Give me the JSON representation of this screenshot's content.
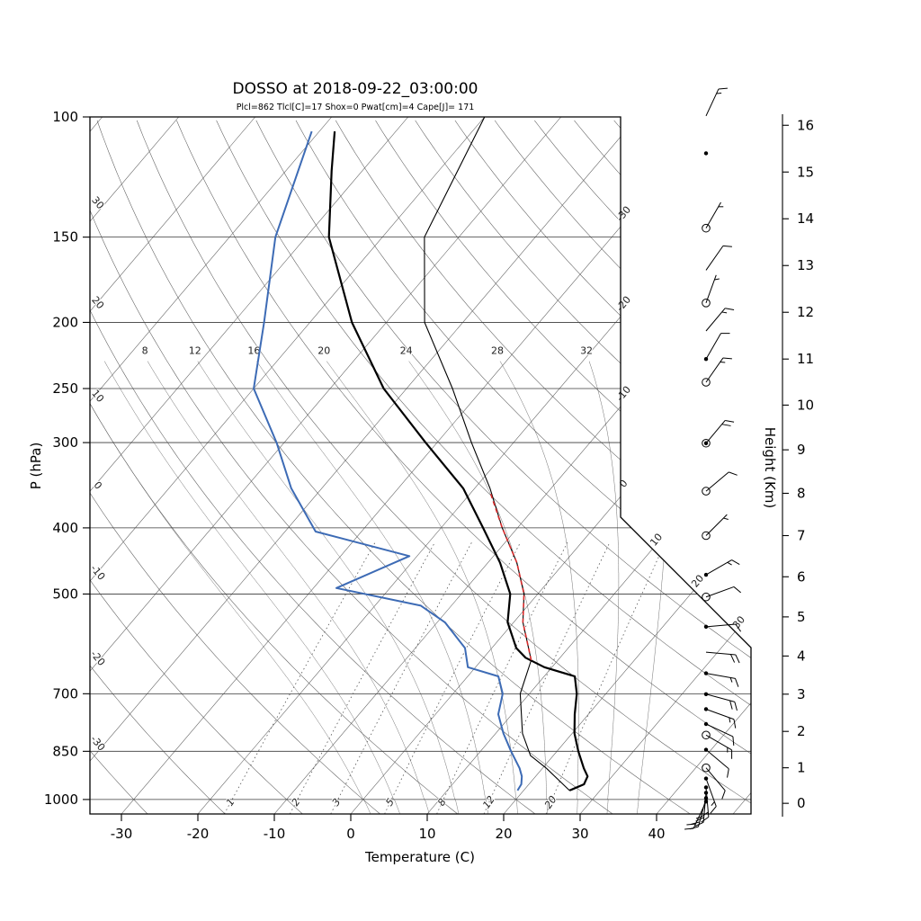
{
  "title": "DOSSO at 2018-09-22_03:00:00",
  "subtitle": "Plcl=862 Tlcl[C]=17 Shox=0 Pwat[cm]=4 Cape[J]= 171",
  "axes": {
    "pressure_label": "P (hPa)",
    "temperature_label": "Temperature (C)",
    "height_label": "Height (Km)",
    "pressure_ticks": [
      100,
      150,
      200,
      250,
      300,
      400,
      500,
      700,
      850,
      1000
    ],
    "temperature_ticks": [
      -30,
      -20,
      -10,
      0,
      10,
      20,
      30,
      40
    ],
    "height_ticks": [
      0,
      1,
      2,
      3,
      4,
      5,
      6,
      7,
      8,
      9,
      10,
      11,
      12,
      13,
      14,
      15,
      16
    ]
  },
  "chart_data": {
    "type": "skewt-log-p",
    "station": "DOSSO",
    "datetime": "2018-09-22_03:00:00",
    "parameters": {
      "Plcl": 862,
      "Tlcl_C": 17,
      "Shox": 0,
      "Pwat_cm": 4,
      "Cape_J": 171
    },
    "pressure_range_hPa": [
      100,
      1050
    ],
    "isotherms": {
      "values": [
        -110,
        -100,
        -90,
        -80,
        -70,
        -60,
        -50,
        -40,
        -30,
        -20,
        -10,
        0,
        10,
        20,
        30,
        40,
        50
      ],
      "labels": [
        -30,
        -20,
        -10,
        0,
        10,
        20,
        30
      ]
    },
    "dry_adiabats": {
      "values": [
        -30,
        -20,
        -10,
        0,
        10,
        20,
        30,
        40,
        50,
        60,
        70,
        80,
        90,
        100,
        110,
        120,
        130,
        140,
        150,
        160,
        170
      ]
    },
    "moist_adiabats": {
      "values": [
        0,
        4,
        8,
        12,
        16,
        20,
        24,
        28,
        32,
        36
      ],
      "labels": [
        8,
        12,
        16,
        20,
        24,
        28,
        32
      ],
      "label_pressure": 228
    },
    "mixing_ratio_g_kg": [
      1,
      2,
      3,
      5,
      8,
      12,
      20
    ],
    "temperature_profile": [
      [
        970,
        26
      ],
      [
        950,
        27.2
      ],
      [
        925,
        26.8
      ],
      [
        900,
        25.4
      ],
      [
        850,
        22.8
      ],
      [
        800,
        20.3
      ],
      [
        750,
        18.2
      ],
      [
        700,
        16.2
      ],
      [
        660,
        14.0
      ],
      [
        640,
        9.0
      ],
      [
        620,
        5.5
      ],
      [
        600,
        3.2
      ],
      [
        550,
        -0.8
      ],
      [
        500,
        -3.6
      ],
      [
        450,
        -8.4
      ],
      [
        400,
        -14.5
      ],
      [
        350,
        -21.5
      ],
      [
        300,
        -31.5
      ],
      [
        250,
        -43.0
      ],
      [
        200,
        -54.5
      ],
      [
        150,
        -67.0
      ],
      [
        120,
        -74.0
      ],
      [
        105,
        -78.0
      ]
    ],
    "dewpoint_profile": [
      [
        970,
        19.2
      ],
      [
        950,
        19.0
      ],
      [
        925,
        18.2
      ],
      [
        900,
        17.0
      ],
      [
        850,
        14.0
      ],
      [
        800,
        11.0
      ],
      [
        750,
        8.2
      ],
      [
        700,
        6.5
      ],
      [
        660,
        4.0
      ],
      [
        640,
        -1.0
      ],
      [
        600,
        -3.5
      ],
      [
        550,
        -9.0
      ],
      [
        520,
        -14.0
      ],
      [
        490,
        -27.0
      ],
      [
        440,
        -21.0
      ],
      [
        405,
        -36.0
      ],
      [
        350,
        -44.0
      ],
      [
        300,
        -51.0
      ],
      [
        250,
        -60.0
      ],
      [
        200,
        -66.0
      ],
      [
        150,
        -74.0
      ],
      [
        105,
        -81.0
      ]
    ],
    "parcel_profile": [
      [
        970,
        26.0
      ],
      [
        900,
        20.5
      ],
      [
        862,
        17.0
      ],
      [
        800,
        13.5
      ],
      [
        700,
        8.8
      ],
      [
        625,
        6.5
      ],
      [
        550,
        1.2
      ],
      [
        500,
        -1.8
      ],
      [
        450,
        -6.2
      ],
      [
        400,
        -12.0
      ],
      [
        350,
        -18.0
      ],
      [
        300,
        -25.5
      ],
      [
        250,
        -34.0
      ],
      [
        200,
        -45.0
      ],
      [
        150,
        -54.5
      ],
      [
        100,
        -60.0
      ]
    ],
    "cape_path": [
      [
        625,
        6.5
      ],
      [
        550,
        1.2
      ],
      [
        500,
        -1.8
      ],
      [
        450,
        -6.2
      ],
      [
        400,
        -12.0
      ],
      [
        355,
        -17.5
      ]
    ],
    "winds": [
      {
        "km": 16.2,
        "spd": 15,
        "dir": 25,
        "m": "none"
      },
      {
        "km": 15.4,
        "spd": 0,
        "dir": 0,
        "m": "dot"
      },
      {
        "km": 13.8,
        "spd": 5,
        "dir": 30,
        "m": "circle"
      },
      {
        "km": 12.9,
        "spd": 10,
        "dir": 35,
        "m": "none"
      },
      {
        "km": 12.2,
        "spd": 5,
        "dir": 20,
        "m": "circle"
      },
      {
        "km": 11.6,
        "spd": 15,
        "dir": 40,
        "m": "none"
      },
      {
        "km": 11.0,
        "spd": 10,
        "dir": 30,
        "m": "dot"
      },
      {
        "km": 10.5,
        "spd": 15,
        "dir": 35,
        "m": "circle"
      },
      {
        "km": 9.15,
        "spd": 20,
        "dir": 40,
        "m": "circle-dot"
      },
      {
        "km": 8.05,
        "spd": 10,
        "dir": 50,
        "m": "circle"
      },
      {
        "km": 7.0,
        "spd": 5,
        "dir": 45,
        "m": "circle"
      },
      {
        "km": 6.05,
        "spd": 15,
        "dir": 60,
        "m": "dot"
      },
      {
        "km": 5.5,
        "spd": 10,
        "dir": 70,
        "m": "circle"
      },
      {
        "km": 4.75,
        "spd": 10,
        "dir": 85,
        "m": "dot"
      },
      {
        "km": 4.1,
        "spd": 20,
        "dir": 95,
        "m": "none"
      },
      {
        "km": 3.55,
        "spd": 15,
        "dir": 100,
        "m": "dot"
      },
      {
        "km": 3.0,
        "spd": 20,
        "dir": 105,
        "m": "dot"
      },
      {
        "km": 2.6,
        "spd": 15,
        "dir": 110,
        "m": "dot"
      },
      {
        "km": 2.2,
        "spd": 10,
        "dir": 115,
        "m": "dot"
      },
      {
        "km": 1.9,
        "spd": 15,
        "dir": 120,
        "m": "circle"
      },
      {
        "km": 1.5,
        "spd": 10,
        "dir": 130,
        "m": "dot"
      },
      {
        "km": 1.0,
        "spd": 10,
        "dir": 140,
        "m": "circle"
      },
      {
        "km": 0.7,
        "spd": 15,
        "dir": 160,
        "m": "dot"
      },
      {
        "km": 0.45,
        "spd": 20,
        "dir": 175,
        "m": "dot"
      },
      {
        "km": 0.3,
        "spd": 20,
        "dir": 185,
        "m": "dot"
      },
      {
        "km": 0.15,
        "spd": 25,
        "dir": 195,
        "m": "dot"
      },
      {
        "km": 0.05,
        "spd": 20,
        "dir": 205,
        "m": "dot"
      }
    ],
    "colors": {
      "temperature": "#000000",
      "dewpoint": "#3d6bb5",
      "parcel": "#000000",
      "cape": "#d92b2b",
      "subtitle": "#c8500a",
      "grid": "#5a5a5a"
    }
  }
}
